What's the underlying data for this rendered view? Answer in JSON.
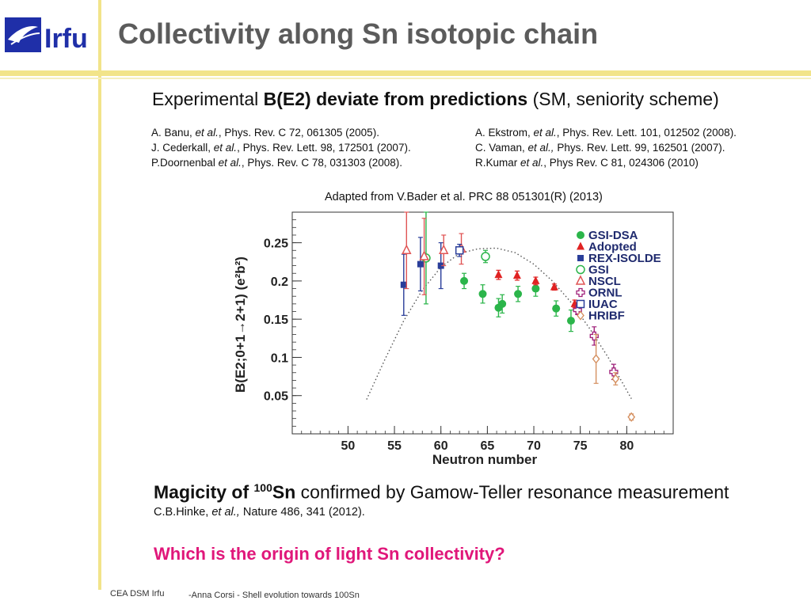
{
  "header": {
    "logo_text": "Irfu",
    "title": "Collectivity along Sn isotopic chain"
  },
  "subtitle": {
    "prefix": "Experimental ",
    "bold": "B(E2) deviate from predictions",
    "suffix": " (SM, seniority scheme)"
  },
  "references_left": [
    {
      "pre": "A. Banu, ",
      "etal": "et al.",
      "post": ", Phys. Rev. C 72, 061305 (2005)."
    },
    {
      "pre": "J. Cederkall, ",
      "etal": "et al.",
      "post": ", Phys. Rev. Lett. 98, 172501 (2007)."
    },
    {
      "pre": "P.Doornenbal ",
      "etal": "et al.",
      "post": ", Phys. Rev. C 78, 031303 (2008)."
    }
  ],
  "references_right": [
    {
      "pre": "A. Ekstrom, ",
      "etal": "et al.",
      "post": ", Phys. Rev. Lett. 101, 012502 (2008)."
    },
    {
      "pre": "C. Vaman, ",
      "etal": "et al.,",
      "post": " Phys. Rev. Lett. 99, 162501 (2007)."
    },
    {
      "pre": "R.Kumar ",
      "etal": "et al.",
      "post": ", Phys Rev. C 81, 024306 (2010)"
    }
  ],
  "adapted": "Adapted from V.Bader et al. PRC 88 051301(R) (2013)",
  "chart_data": {
    "type": "scatter",
    "xlabel": "Neutron number",
    "ylabel": "B(E2;0+1→2+1) (e²b²)",
    "xlim": [
      44,
      85
    ],
    "ylim": [
      0,
      0.29
    ],
    "xticks": [
      "50",
      "55",
      "60",
      "65",
      "70",
      "75",
      "80"
    ],
    "yticks": [
      "0.05",
      "0.1",
      "0.15",
      "0.2",
      "0.25"
    ],
    "legend": [
      "GSI-DSA",
      "Adopted",
      "REX-ISOLDE",
      "GSI",
      "NSCL",
      "ORNL",
      "IUAC",
      "HRIBF"
    ],
    "series": [
      {
        "name": "GSI-DSA",
        "color": "#2bb54a",
        "marker": "filled-circle",
        "points": [
          [
            62.5,
            0.2,
            0.01
          ],
          [
            64.5,
            0.183,
            0.012
          ],
          [
            66.2,
            0.165,
            0.012
          ],
          [
            66.6,
            0.17,
            0.012
          ],
          [
            68.3,
            0.183,
            0.01
          ],
          [
            70.2,
            0.19,
            0.01
          ],
          [
            72.4,
            0.164,
            0.01
          ],
          [
            74,
            0.148,
            0.014
          ]
        ]
      },
      {
        "name": "Adopted",
        "color": "#e02222",
        "marker": "filled-triangle",
        "points": [
          [
            66.2,
            0.208,
            0.006
          ],
          [
            68.2,
            0.207,
            0.006
          ],
          [
            70.2,
            0.2,
            0.005
          ],
          [
            72.2,
            0.192,
            0.004
          ],
          [
            74.4,
            0.17,
            0.005
          ]
        ]
      },
      {
        "name": "REX-ISOLDE",
        "color": "#2a3e9a",
        "marker": "filled-square",
        "points": [
          [
            56,
            0.195,
            0.04
          ],
          [
            57.8,
            0.222,
            0.035
          ],
          [
            60,
            0.22,
            0.03
          ]
        ]
      },
      {
        "name": "GSI",
        "color": "#2bb54a",
        "marker": "open-circle",
        "points": [
          [
            58.4,
            0.23,
            0.06
          ],
          [
            64.8,
            0.232,
            0.008
          ]
        ]
      },
      {
        "name": "NSCL",
        "color": "#e05555",
        "marker": "open-triangle",
        "points": [
          [
            56.3,
            0.24,
            0.05
          ],
          [
            58.2,
            0.232,
            0.05
          ],
          [
            60.3,
            0.24,
            0.02
          ],
          [
            62.2,
            0.242,
            0.02
          ]
        ]
      },
      {
        "name": "ORNL",
        "color": "#a0207a",
        "marker": "open-plus",
        "points": [
          [
            74.7,
            0.162,
            0.006
          ],
          [
            76.5,
            0.128,
            0.012
          ],
          [
            78.6,
            0.081,
            0.01
          ]
        ]
      },
      {
        "name": "IUAC",
        "color": "#2a3e9a",
        "marker": "open-square",
        "points": [
          [
            62,
            0.24,
            0.008
          ]
        ]
      },
      {
        "name": "HRIBF",
        "color": "#d59060",
        "marker": "open-diamond",
        "points": [
          [
            76.7,
            0.098,
            0.032
          ],
          [
            78.8,
            0.072,
            0.008
          ],
          [
            80.5,
            0.022,
            0.004
          ]
        ]
      }
    ],
    "curve": {
      "name": "seniority prediction",
      "color": "#555555",
      "x": [
        52,
        54,
        56,
        58,
        60,
        62,
        64,
        66,
        68,
        70,
        72,
        74,
        76,
        78,
        80.5
      ],
      "y": [
        0.045,
        0.098,
        0.148,
        0.188,
        0.218,
        0.236,
        0.242,
        0.243,
        0.237,
        0.222,
        0.2,
        0.172,
        0.138,
        0.1,
        0.046
      ]
    }
  },
  "magic": {
    "bold_prefix": "Magicity of ",
    "sup": "100",
    "bold_element": "Sn",
    "rest": " confirmed by Gamow-Teller resonance measurement"
  },
  "hinke": {
    "pre": "C.B.Hinke, ",
    "etal": "et al.,",
    "post": " Nature 486, 341 (2012)."
  },
  "question": "Which is the origin of light Sn collectivity?",
  "footer": {
    "org": "CEA DSM Irfu",
    "talk": "-Anna Corsi -   Shell evolution towards 100Sn"
  }
}
